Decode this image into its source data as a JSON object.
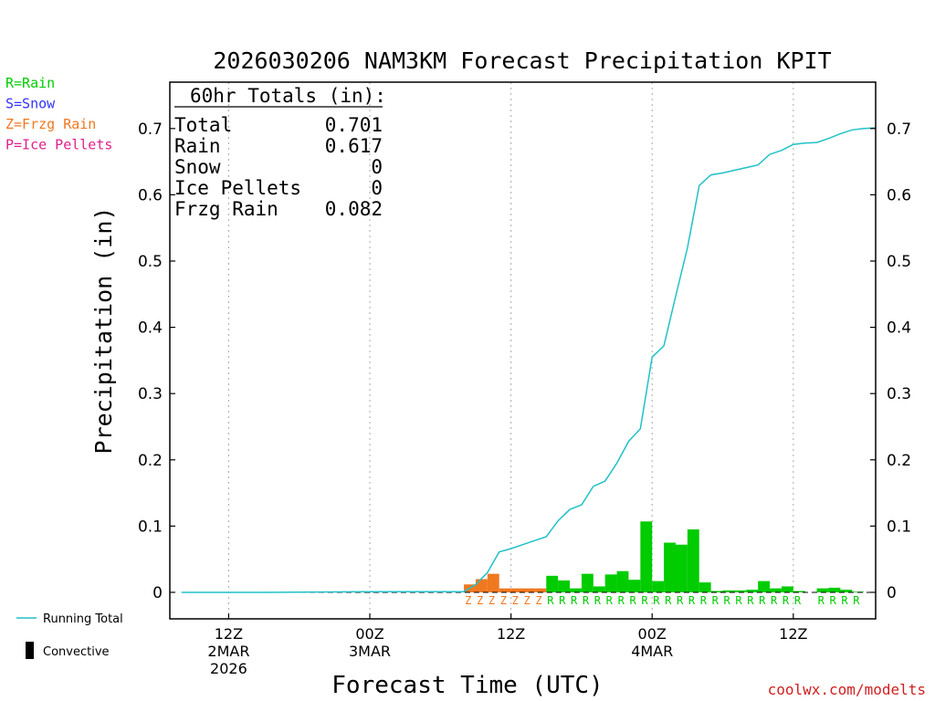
{
  "chart_data": {
    "type": "bar",
    "title": "2026030206 NAM3KM Forecast Precipitation KPIT",
    "xlabel": "Forecast Time (UTC)",
    "ylabel": "Precipitation (in)",
    "ylim": [
      -0.04,
      0.77
    ],
    "yticks": [
      0,
      0.1,
      0.2,
      0.3,
      0.4,
      0.5,
      0.6,
      0.7
    ],
    "ytick_labels": [
      "0",
      "0.1",
      "0.2",
      "0.3",
      "0.4",
      "0.5",
      "0.6",
      "0.7"
    ],
    "xlim_hours": [
      7,
      67
    ],
    "x_ticks": [
      {
        "hour": 12,
        "lines": [
          "12Z",
          "2MAR",
          "2026"
        ]
      },
      {
        "hour": 24,
        "lines": [
          "00Z",
          "3MAR"
        ]
      },
      {
        "hour": 36,
        "lines": [
          "12Z"
        ]
      },
      {
        "hour": 48,
        "lines": [
          "00Z",
          "4MAR"
        ]
      },
      {
        "hour": 60,
        "lines": [
          "12Z"
        ]
      }
    ],
    "legend_types": [
      {
        "label": "R=Rain",
        "color": "#00cc00"
      },
      {
        "label": "S=Snow",
        "color": "#3333ff"
      },
      {
        "label": "Z=Frzg Rain",
        "color": "#f07820"
      },
      {
        "label": "P=Ice Pellets",
        "color": "#e0208c"
      }
    ],
    "legend_lines": [
      {
        "label": "Running Total",
        "color": "#20c0c8"
      },
      {
        "label": "Convective",
        "color": "#000000"
      }
    ],
    "totals": {
      "heading": "60hr Totals (in):",
      "rows": [
        {
          "label": "Total",
          "value": "0.701"
        },
        {
          "label": "Rain",
          "value": "0.617"
        },
        {
          "label": "Snow",
          "value": "0"
        },
        {
          "label": "Ice Pellets",
          "value": "0"
        },
        {
          "label": "Frzg Rain",
          "value": "0.082"
        }
      ]
    },
    "hourly_bars": [
      {
        "hour": 33,
        "value": 0.012,
        "type": "Z"
      },
      {
        "hour": 34,
        "value": 0.02,
        "type": "Z"
      },
      {
        "hour": 35,
        "value": 0.028,
        "type": "Z"
      },
      {
        "hour": 36,
        "value": 0.006,
        "type": "Z"
      },
      {
        "hour": 37,
        "value": 0.006,
        "type": "Z"
      },
      {
        "hour": 38,
        "value": 0.006,
        "type": "Z"
      },
      {
        "hour": 39,
        "value": 0.006,
        "type": "Z"
      },
      {
        "hour": 40,
        "value": 0.025,
        "type": "R"
      },
      {
        "hour": 41,
        "value": 0.018,
        "type": "R"
      },
      {
        "hour": 42,
        "value": 0.006,
        "type": "R"
      },
      {
        "hour": 43,
        "value": 0.028,
        "type": "R"
      },
      {
        "hour": 44,
        "value": 0.009,
        "type": "R"
      },
      {
        "hour": 45,
        "value": 0.027,
        "type": "R"
      },
      {
        "hour": 46,
        "value": 0.032,
        "type": "R"
      },
      {
        "hour": 47,
        "value": 0.019,
        "type": "R"
      },
      {
        "hour": 48,
        "value": 0.107,
        "type": "R"
      },
      {
        "hour": 49,
        "value": 0.017,
        "type": "R"
      },
      {
        "hour": 50,
        "value": 0.075,
        "type": "R"
      },
      {
        "hour": 51,
        "value": 0.072,
        "type": "R"
      },
      {
        "hour": 52,
        "value": 0.095,
        "type": "R"
      },
      {
        "hour": 53,
        "value": 0.015,
        "type": "R"
      },
      {
        "hour": 54,
        "value": 0.002,
        "type": "R"
      },
      {
        "hour": 55,
        "value": 0.003,
        "type": "R"
      },
      {
        "hour": 56,
        "value": 0.003,
        "type": "R"
      },
      {
        "hour": 57,
        "value": 0.004,
        "type": "R"
      },
      {
        "hour": 58,
        "value": 0.017,
        "type": "R"
      },
      {
        "hour": 59,
        "value": 0.006,
        "type": "R"
      },
      {
        "hour": 60,
        "value": 0.009,
        "type": "R"
      },
      {
        "hour": 61,
        "value": 0.002,
        "type": "R"
      },
      {
        "hour": 63,
        "value": 0.006,
        "type": "R"
      },
      {
        "hour": 64,
        "value": 0.007,
        "type": "R"
      },
      {
        "hour": 65,
        "value": 0.004,
        "type": "R"
      },
      {
        "hour": 66,
        "value": 0.001,
        "type": "R"
      }
    ],
    "running_total": {
      "x": [
        8,
        15,
        24,
        32,
        33,
        34,
        35,
        36,
        37,
        38,
        39,
        40,
        41,
        42,
        43,
        44,
        45,
        46,
        47,
        48,
        49,
        50,
        51,
        52,
        53,
        54,
        55,
        56,
        57,
        58,
        59,
        60,
        61,
        62,
        63,
        64,
        65,
        66,
        67
      ],
      "y": [
        0,
        0,
        0.001,
        0.001,
        0.012,
        0.03,
        0.061,
        0.066,
        0.072,
        0.078,
        0.084,
        0.108,
        0.125,
        0.132,
        0.16,
        0.168,
        0.195,
        0.228,
        0.247,
        0.355,
        0.372,
        0.447,
        0.52,
        0.614,
        0.63,
        0.633,
        0.637,
        0.641,
        0.645,
        0.661,
        0.667,
        0.676,
        0.678,
        0.679,
        0.685,
        0.692,
        0.698,
        0.7,
        0.701
      ]
    },
    "watermark": "coolwx.com/modelts"
  }
}
